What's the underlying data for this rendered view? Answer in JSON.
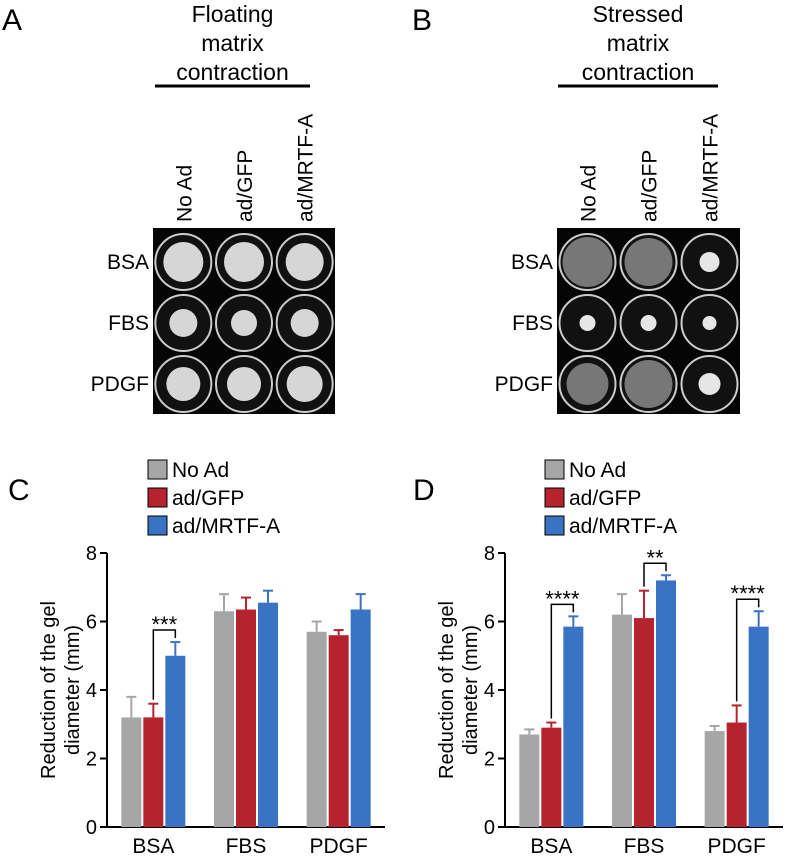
{
  "panel_a": {
    "label": "A",
    "title": [
      "Floating",
      "matrix",
      "contraction"
    ],
    "columns": [
      "No Ad",
      "ad/GFP",
      "ad/MRTF-A"
    ],
    "rows": [
      "BSA",
      "FBS",
      "PDGF"
    ]
  },
  "panel_b": {
    "label": "B",
    "title": [
      "Stressed",
      "matrix",
      "contraction"
    ],
    "columns": [
      "No Ad",
      "ad/GFP",
      "ad/MRTF-A"
    ],
    "rows": [
      "BSA",
      "FBS",
      "PDGF"
    ]
  },
  "chart_data": [
    {
      "type": "bar",
      "label": "C",
      "ylabel": [
        "Reduction of the gel",
        "diameter (mm)"
      ],
      "categories": [
        "BSA",
        "FBS",
        "PDGF"
      ],
      "series": [
        {
          "name": "No Ad",
          "color": "#a6a6a6",
          "values": [
            3.2,
            6.3,
            5.7
          ],
          "errors": [
            0.6,
            0.5,
            0.3
          ]
        },
        {
          "name": "ad/GFP",
          "color": "#b5232f",
          "values": [
            3.2,
            6.35,
            5.6
          ],
          "errors": [
            0.4,
            0.35,
            0.15
          ]
        },
        {
          "name": "ad/MRTF-A",
          "color": "#3a73c4",
          "values": [
            5.0,
            6.55,
            6.35
          ],
          "errors": [
            0.4,
            0.35,
            0.45
          ]
        }
      ],
      "ylim": [
        0,
        8
      ],
      "yticks": [
        0,
        2,
        4,
        6,
        8
      ],
      "annotations": [
        {
          "label": "***",
          "category": 0,
          "from": 1,
          "to": 2
        }
      ]
    },
    {
      "type": "bar",
      "label": "D",
      "ylabel": [
        "Reduction of the gel",
        "diameter (mm)"
      ],
      "categories": [
        "BSA",
        "FBS",
        "PDGF"
      ],
      "series": [
        {
          "name": "No Ad",
          "color": "#a6a6a6",
          "values": [
            2.7,
            6.2,
            2.8
          ],
          "errors": [
            0.15,
            0.6,
            0.15
          ]
        },
        {
          "name": "ad/GFP",
          "color": "#b5232f",
          "values": [
            2.9,
            6.1,
            3.05
          ],
          "errors": [
            0.15,
            0.8,
            0.5
          ]
        },
        {
          "name": "ad/MRTF-A",
          "color": "#3a73c4",
          "values": [
            5.85,
            7.2,
            5.85
          ],
          "errors": [
            0.3,
            0.15,
            0.45
          ]
        }
      ],
      "ylim": [
        0,
        8
      ],
      "yticks": [
        0,
        2,
        4,
        6,
        8
      ],
      "annotations": [
        {
          "label": "****",
          "category": 0,
          "from": 1,
          "to": 2
        },
        {
          "label": "**",
          "category": 1,
          "from": 1,
          "to": 2
        },
        {
          "label": "****",
          "category": 2,
          "from": 1,
          "to": 2
        }
      ]
    }
  ]
}
